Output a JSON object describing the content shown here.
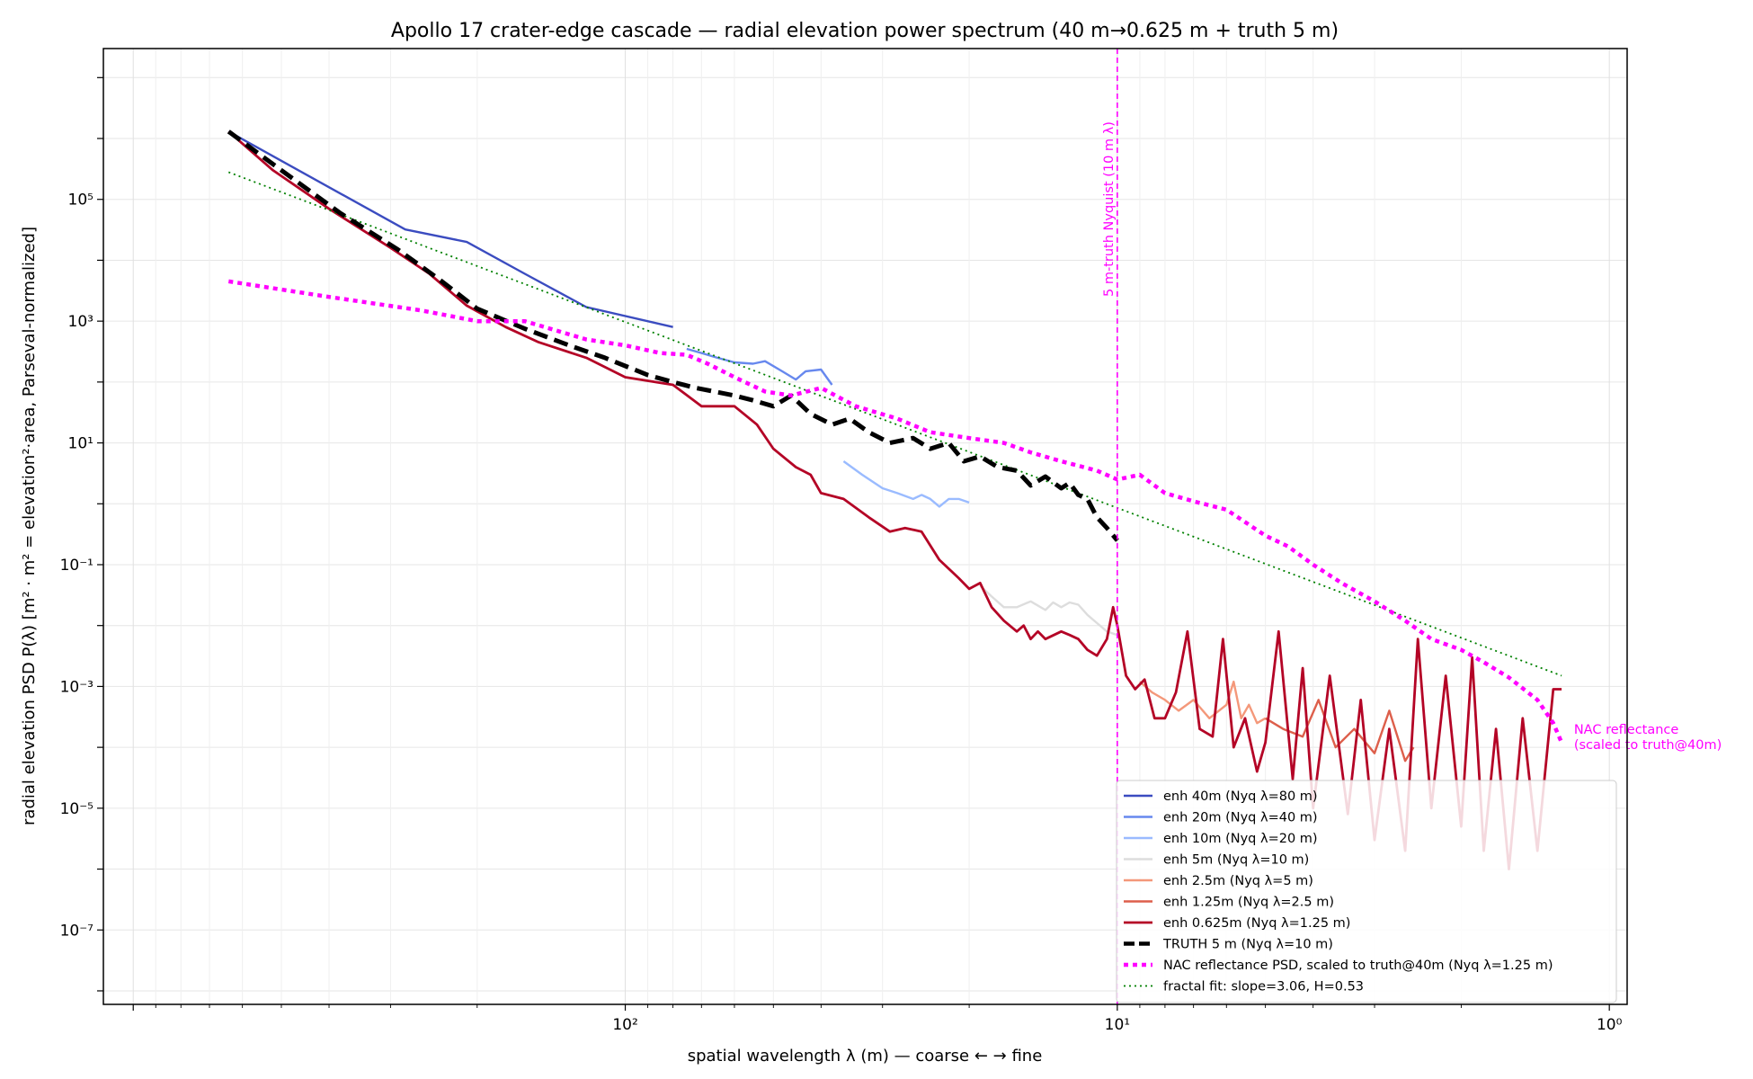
{
  "chart_data": {
    "type": "line",
    "title": "Apollo 17 crater-edge cascade — radial elevation power spectrum (40 m→0.625 m + truth 5 m)",
    "xlabel": "spatial wavelength λ (m) — coarse ← → fine",
    "ylabel": "radial elevation PSD  P(λ)  [m² · m² = elevation²·area, Parseval-normalized]",
    "x_scale": "log",
    "x_reversed": true,
    "y_scale": "log",
    "xlim": [
      1150,
      0.92
    ],
    "ylim": [
      6e-09,
      30000000.0
    ],
    "grid": true,
    "legend_position": "lower-right",
    "x_ticks": [
      {
        "value": 100,
        "label": "10²"
      },
      {
        "value": 10,
        "label": "10¹"
      },
      {
        "value": 1,
        "label": "10⁰"
      }
    ],
    "y_ticks": [
      {
        "value": 100000.0,
        "label": "10⁵"
      },
      {
        "value": 1000.0,
        "label": "10³"
      },
      {
        "value": 10,
        "label": "10¹"
      },
      {
        "value": 0.1,
        "label": "10⁻¹"
      },
      {
        "value": 0.001,
        "label": "10⁻³"
      },
      {
        "value": 1e-05,
        "label": "10⁻⁵"
      },
      {
        "value": 1e-07,
        "label": "10⁻⁷"
      }
    ],
    "vline": {
      "x": 10,
      "color": "#ff00ff",
      "label": "5 m-truth Nyquist (10 m λ)"
    },
    "annotation": {
      "x": 1.2,
      "y": 0.00012,
      "lines": [
        "NAC reflectance",
        "(scaled to truth@40m)"
      ]
    },
    "series": [
      {
        "name": "enh 40m (Nyq λ=80 m)",
        "color": "#3b4cc0",
        "width": 2.4,
        "dash": "",
        "kind": "elev",
        "x": [
          640,
          280,
          210,
          160,
          120,
          80
        ],
        "y": [
          1300000.0,
          32000.0,
          20000.0,
          6000.0,
          1700.0,
          800
        ]
      },
      {
        "name": "enh 20m (Nyq λ=40 m)",
        "color": "#6788ee",
        "width": 2.4,
        "dash": "",
        "kind": "elev",
        "x": [
          75,
          70,
          65,
          60,
          55,
          52,
          48,
          45,
          43,
          40,
          38
        ],
        "y": [
          350,
          300,
          250,
          210,
          200,
          220,
          150,
          110,
          150,
          160,
          90
        ]
      },
      {
        "name": "enh 10m (Nyq λ=20 m)",
        "color": "#9abbff",
        "width": 2.4,
        "dash": "",
        "kind": "elev",
        "x": [
          36,
          33,
          30,
          28,
          26,
          25,
          24,
          23,
          22,
          21,
          20
        ],
        "y": [
          5,
          3,
          1.8,
          1.5,
          1.2,
          1.4,
          1.2,
          0.9,
          1.2,
          1.2,
          1.05
        ]
      },
      {
        "name": "enh 5m (Nyq λ=10 m)",
        "color": "#dddddd",
        "width": 2.4,
        "dash": "",
        "kind": "elev",
        "x": [
          19,
          18,
          17,
          16,
          15,
          14,
          13.5,
          13,
          12.5,
          12,
          11.5,
          11,
          10.5,
          10
        ],
        "y": [
          0.045,
          0.03,
          0.02,
          0.02,
          0.025,
          0.018,
          0.024,
          0.02,
          0.024,
          0.022,
          0.015,
          0.011,
          0.008,
          0.007
        ]
      },
      {
        "name": "enh 2.5m (Nyq λ=5 m)",
        "color": "#f4987a",
        "width": 2.4,
        "dash": "",
        "kind": "elev",
        "x": [
          9,
          8.5,
          8,
          7.5,
          7,
          6.5,
          6,
          5.8,
          5.6,
          5.4,
          5.2,
          5
        ],
        "y": [
          0.0012,
          0.0008,
          0.0006,
          0.0004,
          0.0006,
          0.0003,
          0.0005,
          0.0012,
          0.0003,
          0.0005,
          0.00025,
          0.0003
        ]
      },
      {
        "name": "enh 1.25m (Nyq λ=2.5 m)",
        "color": "#dd5f4b",
        "width": 2.4,
        "dash": "",
        "kind": "elev",
        "x": [
          5,
          4.6,
          4.2,
          3.9,
          3.6,
          3.3,
          3,
          2.8,
          2.6,
          2.5
        ],
        "y": [
          0.0003,
          0.0002,
          0.00015,
          0.0006,
          0.0001,
          0.0002,
          8e-05,
          0.0004,
          6e-05,
          0.0001
        ]
      },
      {
        "name": "enh 0.625m (Nyq λ=1.25 m)",
        "color": "#b40426",
        "width": 2.8,
        "dash": "",
        "kind": "elev",
        "x": [
          640,
          520,
          400,
          300,
          250,
          210,
          175,
          150,
          120,
          100,
          80,
          70,
          60,
          54,
          50,
          45,
          42,
          40,
          36,
          32,
          29,
          27,
          25,
          23,
          21,
          20,
          19,
          18,
          17,
          16,
          15.5,
          15,
          14.5,
          14,
          13,
          12.5,
          12,
          11.5,
          11,
          10.5,
          10.2,
          10,
          9.6,
          9.2,
          8.8,
          8.4,
          8,
          7.6,
          7.2,
          6.8,
          6.4,
          6.1,
          5.8,
          5.5,
          5.2,
          5,
          4.7,
          4.4,
          4.2,
          4,
          3.7,
          3.4,
          3.2,
          3,
          2.8,
          2.6,
          2.45,
          2.3,
          2.15,
          2,
          1.9,
          1.8,
          1.7,
          1.6,
          1.5,
          1.4,
          1.3,
          1.25
        ],
        "y": [
          1300000.0,
          300000.0,
          70000.0,
          16000.0,
          6000.0,
          1800.0,
          800,
          450,
          250,
          120,
          90,
          40,
          40,
          20,
          8,
          4,
          3,
          1.5,
          1.2,
          0.6,
          0.35,
          0.4,
          0.35,
          0.12,
          0.06,
          0.04,
          0.05,
          0.02,
          0.012,
          0.008,
          0.01,
          0.006,
          0.008,
          0.006,
          0.008,
          0.007,
          0.006,
          0.004,
          0.0032,
          0.006,
          0.02,
          0.01,
          0.0015,
          0.0009,
          0.0013,
          0.0003,
          0.0003,
          0.0008,
          0.008,
          0.0002,
          0.00015,
          0.006,
          0.0001,
          0.0003,
          4e-05,
          0.00012,
          0.008,
          3e-05,
          0.002,
          1e-05,
          0.0015,
          8e-06,
          0.0006,
          3e-06,
          0.0002,
          2e-06,
          0.006,
          1e-05,
          0.0015,
          5e-06,
          0.003,
          2e-06,
          0.0002,
          1e-06,
          0.0003,
          2e-06,
          0.0009,
          0.0009
        ]
      },
      {
        "name": "TRUTH 5 m (Nyq λ=10 m)",
        "color": "#000000",
        "width": 5,
        "dash": "16,8",
        "kind": "truth",
        "x": [
          640,
          500,
          380,
          290,
          240,
          200,
          160,
          130,
          110,
          90,
          80,
          72,
          66,
          60,
          55,
          50,
          46,
          42,
          38,
          35,
          32,
          29,
          26,
          24,
          22,
          20.5,
          19,
          17.5,
          16,
          15,
          14,
          13,
          12.5,
          12,
          11.5,
          11,
          10.5,
          10
        ],
        "y": [
          1300000.0,
          300000.0,
          60000.0,
          15000.0,
          5000.0,
          1600.0,
          750,
          400,
          250,
          130,
          100,
          80,
          70,
          60,
          50,
          40,
          60,
          30,
          20,
          25,
          15,
          10,
          12,
          8,
          10,
          5,
          6,
          4,
          3.5,
          2,
          2.8,
          1.8,
          2.2,
          1.4,
          1.2,
          0.6,
          0.4,
          0.25
        ]
      },
      {
        "name": "NAC reflectance PSD, scaled to truth@40m (Nyq λ=1.25 m)",
        "color": "#ff00ff",
        "width": 4.5,
        "dash": "5,5",
        "kind": "nac",
        "x": [
          640,
          400,
          260,
          200,
          160,
          120,
          100,
          85,
          75,
          68,
          60,
          52,
          46,
          40,
          34,
          28,
          24,
          20,
          17,
          15,
          13,
          11,
          10,
          9,
          8,
          7,
          6,
          5,
          4.5,
          4,
          3.5,
          3,
          2.6,
          2.3,
          2,
          1.8,
          1.6,
          1.4,
          1.3,
          1.25
        ],
        "y": [
          4500,
          2500,
          1500,
          1000,
          1000,
          500,
          400,
          300,
          280,
          200,
          120,
          70,
          60,
          80,
          40,
          25,
          15,
          12,
          10,
          7,
          5,
          3.5,
          2.5,
          3,
          1.5,
          1.1,
          0.8,
          0.3,
          0.2,
          0.1,
          0.05,
          0.025,
          0.012,
          0.006,
          0.004,
          0.0025,
          0.0014,
          0.0006,
          0.00025,
          0.00012
        ]
      },
      {
        "name": "fractal fit: slope=3.06, H=0.53",
        "color": "#008000",
        "width": 1.8,
        "dash": "2,4",
        "kind": "fit",
        "x": [
          640,
          1.25
        ],
        "y": [
          280000.0,
          0.0015
        ]
      }
    ]
  }
}
